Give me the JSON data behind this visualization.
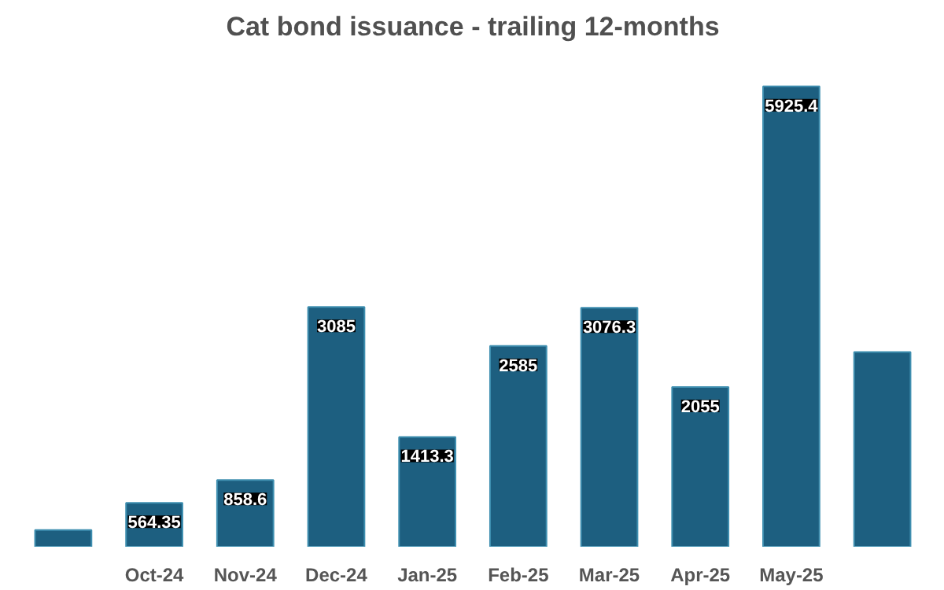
{
  "chart_data": {
    "type": "bar",
    "title": "Cat bond issuance - trailing 12-months",
    "categories": [
      null,
      "Oct-24",
      "Nov-24",
      "Dec-24",
      "Jan-25",
      "Feb-25",
      "Mar-25",
      "Apr-25",
      "May-25",
      null
    ],
    "values": [
      216,
      564.35,
      858.6,
      3085,
      1413.3,
      2585,
      3076.3,
      2055,
      5925.4,
      2505
    ],
    "value_labels": [
      null,
      "564.35",
      "858.6",
      "3085",
      "1413.3",
      "2585",
      "3076.3",
      "2055",
      "5925.4",
      null
    ],
    "color": "#1d5f80"
  }
}
